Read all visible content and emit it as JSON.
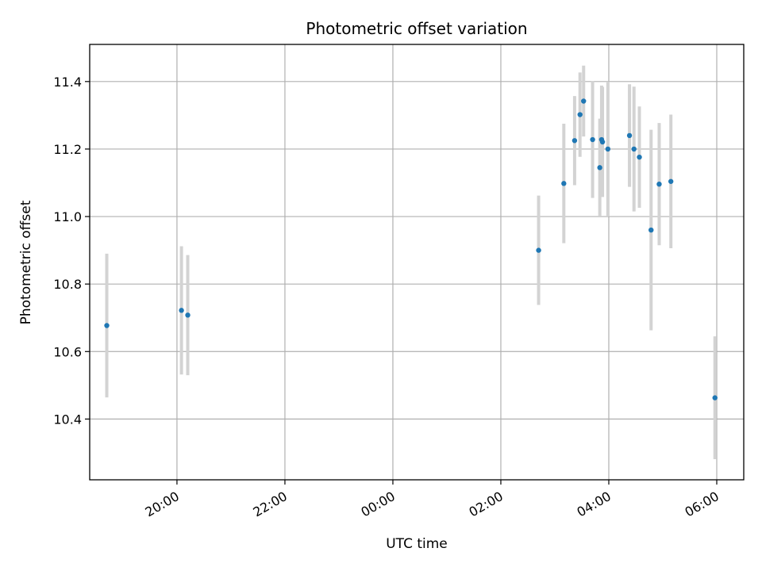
{
  "chart_data": {
    "type": "scatter",
    "title": "Photometric offset variation",
    "xlabel": "UTC time",
    "ylabel": "Photometric offset",
    "x_axis_type": "time",
    "xlim": [
      "18:23",
      "06:30"
    ],
    "ylim": [
      10.22,
      11.51
    ],
    "x_ticks": [
      {
        "label": "20:00",
        "time": "20:00"
      },
      {
        "label": "22:00",
        "time": "22:00"
      },
      {
        "label": "00:00",
        "time": "00:00"
      },
      {
        "label": "02:00",
        "time": "02:00"
      },
      {
        "label": "04:00",
        "time": "04:00"
      },
      {
        "label": "06:00",
        "time": "06:00"
      }
    ],
    "y_ticks": [
      {
        "label": "10.4",
        "value": 10.4
      },
      {
        "label": "10.6",
        "value": 10.6
      },
      {
        "label": "10.8",
        "value": 10.8
      },
      {
        "label": "11.0",
        "value": 11.0
      },
      {
        "label": "11.2",
        "value": 11.2
      },
      {
        "label": "11.4",
        "value": 11.4
      }
    ],
    "grid": true,
    "marker_color": "#1f77b4",
    "errorbar_color": "#d3d3d3",
    "points": [
      {
        "time": "18:42",
        "y": 10.677,
        "err": 0.213
      },
      {
        "time": "20:05",
        "y": 10.722,
        "err": 0.19
      },
      {
        "time": "20:12",
        "y": 10.708,
        "err": 0.178
      },
      {
        "time": "02:42",
        "y": 10.9,
        "err": 0.162
      },
      {
        "time": "03:10",
        "y": 11.098,
        "err": 0.177
      },
      {
        "time": "03:22",
        "y": 11.225,
        "err": 0.132
      },
      {
        "time": "03:28",
        "y": 11.302,
        "err": 0.125
      },
      {
        "time": "03:32",
        "y": 11.342,
        "err": 0.105
      },
      {
        "time": "03:42",
        "y": 11.228,
        "err": 0.173
      },
      {
        "time": "03:50",
        "y": 11.145,
        "err": 0.145
      },
      {
        "time": "03:52",
        "y": 11.228,
        "err": 0.16
      },
      {
        "time": "03:53",
        "y": 11.221,
        "err": 0.163
      },
      {
        "time": "03:59",
        "y": 11.2,
        "err": 0.2
      },
      {
        "time": "04:23",
        "y": 11.24,
        "err": 0.152
      },
      {
        "time": "04:28",
        "y": 11.2,
        "err": 0.185
      },
      {
        "time": "04:34",
        "y": 11.176,
        "err": 0.15
      },
      {
        "time": "04:47",
        "y": 10.96,
        "err": 0.297
      },
      {
        "time": "04:56",
        "y": 11.096,
        "err": 0.181
      },
      {
        "time": "05:09",
        "y": 11.104,
        "err": 0.198
      },
      {
        "time": "05:58",
        "y": 10.463,
        "err": 0.182
      }
    ]
  }
}
